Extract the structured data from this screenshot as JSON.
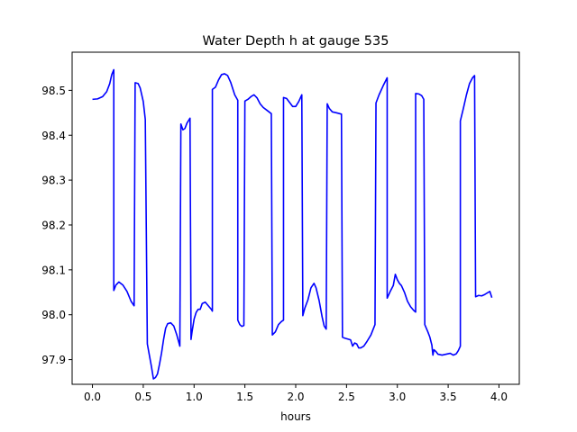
{
  "chart_data": {
    "type": "line",
    "title": "Water Depth h at gauge 535",
    "xlabel": "hours",
    "ylabel": "",
    "xlim": [
      -0.2,
      4.2
    ],
    "ylim": [
      97.845,
      98.585
    ],
    "xticks": [
      0.0,
      0.5,
      1.0,
      1.5,
      2.0,
      2.5,
      3.0,
      3.5,
      4.0
    ],
    "xtick_labels": [
      "0.0",
      "0.5",
      "1.0",
      "1.5",
      "2.0",
      "2.5",
      "3.0",
      "3.5",
      "4.0"
    ],
    "yticks": [
      97.9,
      98.0,
      98.1,
      98.2,
      98.3,
      98.4,
      98.5
    ],
    "ytick_labels": [
      "97.9",
      "98.0",
      "98.1",
      "98.2",
      "98.3",
      "98.4",
      "98.5"
    ],
    "grid": false,
    "series": [
      {
        "color": "#0000ff",
        "points": [
          [
            0.0,
            98.48
          ],
          [
            0.05,
            98.481
          ],
          [
            0.1,
            98.486
          ],
          [
            0.14,
            98.497
          ],
          [
            0.17,
            98.515
          ],
          [
            0.19,
            98.535
          ],
          [
            0.21,
            98.546
          ],
          [
            0.21,
            98.054
          ],
          [
            0.23,
            98.066
          ],
          [
            0.26,
            98.073
          ],
          [
            0.3,
            98.066
          ],
          [
            0.34,
            98.052
          ],
          [
            0.38,
            98.03
          ],
          [
            0.41,
            98.02
          ],
          [
            0.42,
            98.517
          ],
          [
            0.45,
            98.515
          ],
          [
            0.47,
            98.505
          ],
          [
            0.5,
            98.475
          ],
          [
            0.52,
            98.435
          ],
          [
            0.54,
            97.935
          ],
          [
            0.56,
            97.91
          ],
          [
            0.58,
            97.885
          ],
          [
            0.6,
            97.857
          ],
          [
            0.62,
            97.86
          ],
          [
            0.64,
            97.868
          ],
          [
            0.66,
            97.89
          ],
          [
            0.68,
            97.915
          ],
          [
            0.7,
            97.945
          ],
          [
            0.72,
            97.97
          ],
          [
            0.74,
            97.98
          ],
          [
            0.77,
            97.982
          ],
          [
            0.8,
            97.975
          ],
          [
            0.83,
            97.955
          ],
          [
            0.86,
            97.93
          ],
          [
            0.87,
            98.425
          ],
          [
            0.89,
            98.412
          ],
          [
            0.91,
            98.415
          ],
          [
            0.93,
            98.427
          ],
          [
            0.96,
            98.438
          ],
          [
            0.97,
            97.945
          ],
          [
            0.98,
            97.962
          ],
          [
            1.0,
            97.99
          ],
          [
            1.02,
            98.005
          ],
          [
            1.04,
            98.012
          ],
          [
            1.06,
            98.012
          ],
          [
            1.08,
            98.025
          ],
          [
            1.11,
            98.028
          ],
          [
            1.14,
            98.02
          ],
          [
            1.17,
            98.012
          ],
          [
            1.18,
            98.008
          ],
          [
            1.18,
            98.502
          ],
          [
            1.21,
            98.507
          ],
          [
            1.24,
            98.523
          ],
          [
            1.27,
            98.535
          ],
          [
            1.3,
            98.537
          ],
          [
            1.33,
            98.533
          ],
          [
            1.36,
            98.518
          ],
          [
            1.4,
            98.49
          ],
          [
            1.43,
            98.478
          ],
          [
            1.43,
            97.988
          ],
          [
            1.45,
            97.978
          ],
          [
            1.47,
            97.974
          ],
          [
            1.49,
            97.976
          ],
          [
            1.5,
            98.476
          ],
          [
            1.53,
            98.48
          ],
          [
            1.56,
            98.486
          ],
          [
            1.59,
            98.49
          ],
          [
            1.62,
            98.483
          ],
          [
            1.65,
            98.47
          ],
          [
            1.68,
            98.462
          ],
          [
            1.72,
            98.455
          ],
          [
            1.76,
            98.448
          ],
          [
            1.77,
            97.955
          ],
          [
            1.8,
            97.962
          ],
          [
            1.83,
            97.978
          ],
          [
            1.86,
            97.985
          ],
          [
            1.88,
            97.988
          ],
          [
            1.88,
            98.484
          ],
          [
            1.91,
            98.482
          ],
          [
            1.94,
            98.473
          ],
          [
            1.97,
            98.464
          ],
          [
            2.0,
            98.464
          ],
          [
            2.03,
            98.475
          ],
          [
            2.06,
            98.49
          ],
          [
            2.07,
            97.998
          ],
          [
            2.09,
            98.015
          ],
          [
            2.12,
            98.033
          ],
          [
            2.15,
            98.06
          ],
          [
            2.18,
            98.07
          ],
          [
            2.2,
            98.06
          ],
          [
            2.23,
            98.032
          ],
          [
            2.26,
            97.995
          ],
          [
            2.28,
            97.975
          ],
          [
            2.3,
            97.968
          ],
          [
            2.31,
            98.47
          ],
          [
            2.33,
            98.46
          ],
          [
            2.36,
            98.452
          ],
          [
            2.4,
            98.45
          ],
          [
            2.45,
            98.447
          ],
          [
            2.46,
            97.95
          ],
          [
            2.48,
            97.948
          ],
          [
            2.51,
            97.946
          ],
          [
            2.54,
            97.944
          ],
          [
            2.56,
            97.93
          ],
          [
            2.58,
            97.937
          ],
          [
            2.6,
            97.935
          ],
          [
            2.62,
            97.926
          ],
          [
            2.64,
            97.926
          ],
          [
            2.67,
            97.93
          ],
          [
            2.7,
            97.94
          ],
          [
            2.74,
            97.955
          ],
          [
            2.78,
            97.978
          ],
          [
            2.79,
            98.472
          ],
          [
            2.82,
            98.49
          ],
          [
            2.86,
            98.51
          ],
          [
            2.9,
            98.528
          ],
          [
            2.9,
            98.037
          ],
          [
            2.93,
            98.052
          ],
          [
            2.96,
            98.065
          ],
          [
            2.98,
            98.09
          ],
          [
            3.0,
            98.078
          ],
          [
            3.02,
            98.07
          ],
          [
            3.04,
            98.065
          ],
          [
            3.07,
            98.05
          ],
          [
            3.1,
            98.03
          ],
          [
            3.13,
            98.018
          ],
          [
            3.16,
            98.01
          ],
          [
            3.18,
            98.006
          ],
          [
            3.18,
            98.493
          ],
          [
            3.21,
            98.492
          ],
          [
            3.24,
            98.488
          ],
          [
            3.26,
            98.48
          ],
          [
            3.27,
            97.978
          ],
          [
            3.3,
            97.962
          ],
          [
            3.32,
            97.95
          ],
          [
            3.34,
            97.932
          ],
          [
            3.35,
            97.91
          ],
          [
            3.36,
            97.922
          ],
          [
            3.38,
            97.918
          ],
          [
            3.4,
            97.912
          ],
          [
            3.44,
            97.91
          ],
          [
            3.48,
            97.912
          ],
          [
            3.52,
            97.914
          ],
          [
            3.55,
            97.91
          ],
          [
            3.58,
            97.913
          ],
          [
            3.6,
            97.92
          ],
          [
            3.62,
            97.93
          ],
          [
            3.62,
            98.432
          ],
          [
            3.65,
            98.46
          ],
          [
            3.68,
            98.49
          ],
          [
            3.71,
            98.515
          ],
          [
            3.74,
            98.528
          ],
          [
            3.76,
            98.533
          ],
          [
            3.77,
            98.04
          ],
          [
            3.8,
            98.043
          ],
          [
            3.83,
            98.042
          ],
          [
            3.86,
            98.045
          ],
          [
            3.88,
            98.048
          ],
          [
            3.91,
            98.052
          ],
          [
            3.93,
            98.038
          ]
        ]
      }
    ]
  }
}
